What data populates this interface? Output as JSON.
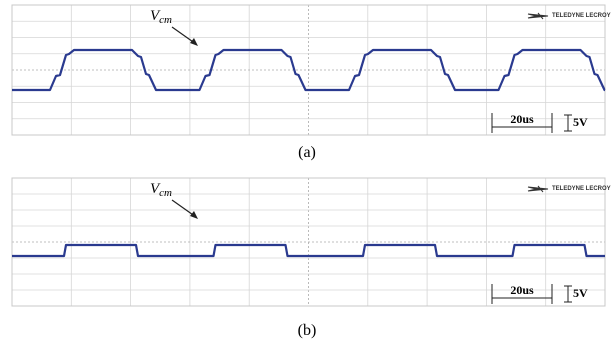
{
  "panels": [
    {
      "label": "(a)",
      "trace_label": "V",
      "trace_label_sub": "cm",
      "logo": "TELEDYNE LECROY",
      "time_scale": "20us",
      "volt_scale": "5V"
    },
    {
      "label": "(b)",
      "trace_label": "V",
      "trace_label_sub": "cm",
      "logo": "TELEDYNE LECROY",
      "time_scale": "20us",
      "volt_scale": "5V"
    }
  ]
}
